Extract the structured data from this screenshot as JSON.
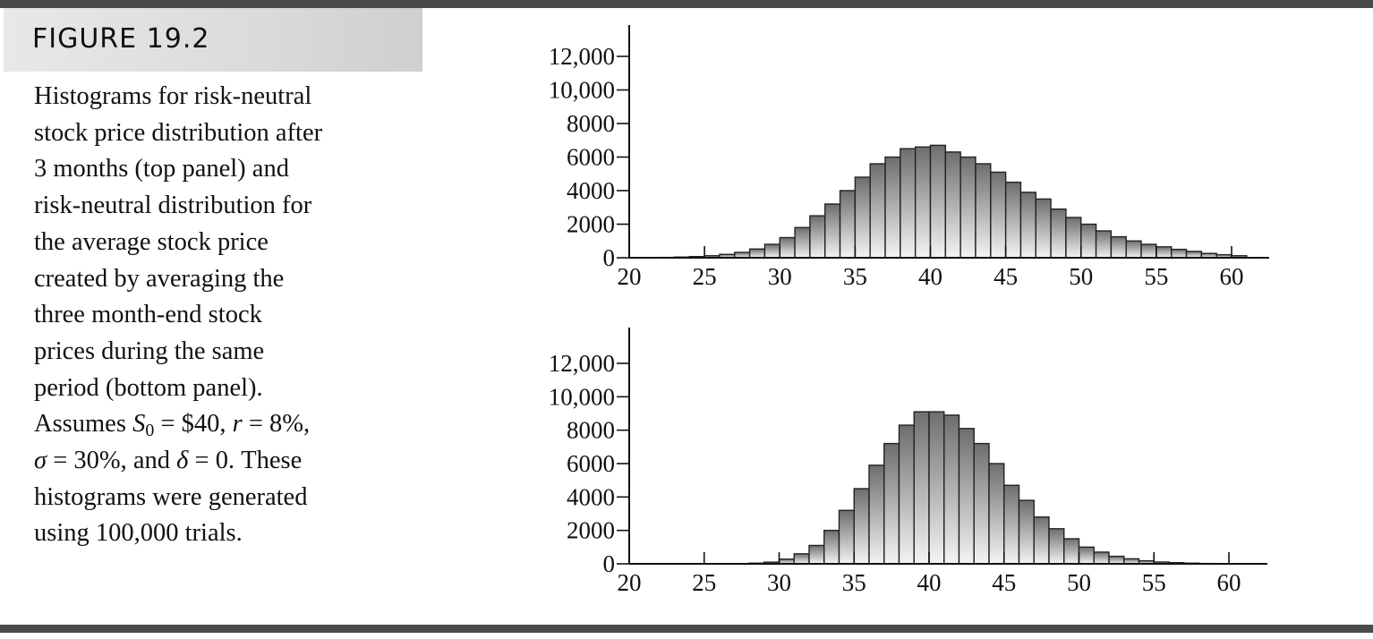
{
  "figure": {
    "label": "FIGURE 19.2",
    "caption_lines": [
      "Histograms for risk-neutral",
      "stock price distribution after",
      "3 months (top panel) and",
      "risk-neutral distribution for",
      "the average stock price",
      "created by averaging the",
      "three month-end stock",
      "prices during the same",
      "period (bottom panel)."
    ],
    "assumptions": {
      "prefix": "Assumes ",
      "s_symbol": "S",
      "s_subscript": "0",
      "s_value": " = $40, ",
      "r_symbol": "r",
      "r_value": " = 8%,",
      "sigma_symbol": "σ",
      "sigma_value": " = 30%, and ",
      "delta_symbol": "δ",
      "delta_value": " = 0. These"
    },
    "caption_tail": [
      "histograms were generated",
      "using 100,000 trials."
    ]
  },
  "colors": {
    "rule": "#4a4a4a",
    "bar_stroke": "#222222",
    "bar_fill_dark": "#6e6e6e",
    "bar_fill_light": "#f4f4f4",
    "axis": "#111111"
  },
  "chart_data": [
    {
      "type": "bar",
      "title": "",
      "xlabel": "",
      "ylabel": "",
      "xlim": [
        20,
        62.5
      ],
      "ylim": [
        0,
        12000
      ],
      "x_ticks": [
        20,
        25,
        30,
        35,
        40,
        45,
        50,
        55,
        60
      ],
      "x_tick_labels": [
        "20",
        "25",
        "30",
        "35",
        "40",
        "45",
        "50",
        "55",
        "60"
      ],
      "y_ticks": [
        0,
        2000,
        4000,
        6000,
        8000,
        10000,
        12000
      ],
      "y_tick_labels": [
        "0",
        "2000",
        "4000",
        "6000",
        "8000",
        "10,000",
        "12,000"
      ],
      "bin_width": 1,
      "bin_starts": [
        20,
        21,
        22,
        23,
        24,
        25,
        26,
        27,
        28,
        29,
        30,
        31,
        32,
        33,
        34,
        35,
        36,
        37,
        38,
        39,
        40,
        41,
        42,
        43,
        44,
        45,
        46,
        47,
        48,
        49,
        50,
        51,
        52,
        53,
        54,
        55,
        56,
        57,
        58,
        59,
        60
      ],
      "values": [
        5,
        10,
        20,
        40,
        70,
        120,
        200,
        320,
        520,
        800,
        1200,
        1800,
        2500,
        3200,
        4000,
        4800,
        5600,
        6000,
        6500,
        6600,
        6700,
        6300,
        6000,
        5600,
        5100,
        4500,
        3900,
        3500,
        2900,
        2400,
        2000,
        1600,
        1250,
        1000,
        800,
        650,
        500,
        380,
        260,
        180,
        120
      ],
      "grid": false,
      "legend": "none"
    },
    {
      "type": "bar",
      "title": "",
      "xlabel": "",
      "ylabel": "",
      "xlim": [
        20,
        62.5
      ],
      "ylim": [
        0,
        12000
      ],
      "x_ticks": [
        20,
        25,
        30,
        35,
        40,
        45,
        50,
        55,
        60
      ],
      "x_tick_labels": [
        "20",
        "25",
        "30",
        "35",
        "40",
        "45",
        "50",
        "55",
        "60"
      ],
      "y_ticks": [
        0,
        2000,
        4000,
        6000,
        8000,
        10000,
        12000
      ],
      "y_tick_labels": [
        "0",
        "2000",
        "4000",
        "6000",
        "8000",
        "10,000",
        "12,000"
      ],
      "bin_width": 1,
      "bin_starts": [
        20,
        21,
        22,
        23,
        24,
        25,
        26,
        27,
        28,
        29,
        30,
        31,
        32,
        33,
        34,
        35,
        36,
        37,
        38,
        39,
        40,
        41,
        42,
        43,
        44,
        45,
        46,
        47,
        48,
        49,
        50,
        51,
        52,
        53,
        54,
        55,
        56,
        57,
        58,
        59,
        60
      ],
      "values": [
        0,
        0,
        0,
        0,
        0,
        0,
        2,
        10,
        40,
        100,
        280,
        600,
        1100,
        2000,
        3200,
        4500,
        5900,
        7200,
        8300,
        9100,
        9100,
        8900,
        8100,
        7200,
        6000,
        4700,
        3800,
        2800,
        2100,
        1500,
        1000,
        700,
        450,
        300,
        180,
        110,
        70,
        40,
        20,
        10,
        5
      ],
      "grid": false,
      "legend": "none"
    }
  ]
}
